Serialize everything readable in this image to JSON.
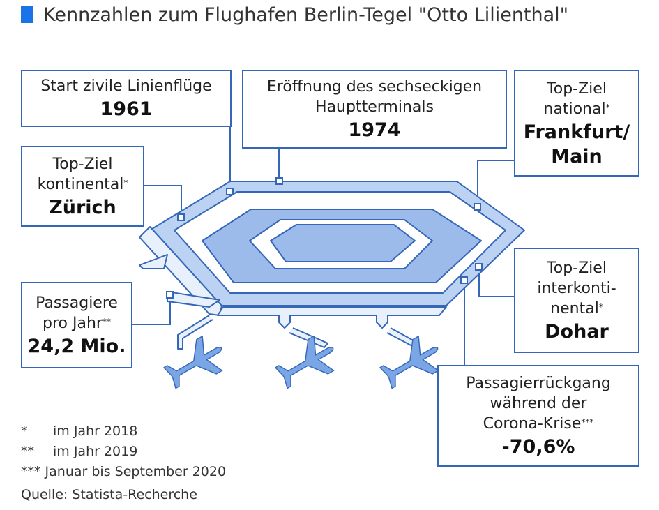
{
  "title": "Kennzahlen zum Flughafen Berlin-Tegel \"Otto Lilienthal\"",
  "boxes": [
    {
      "label": [
        "Start zivile Linienflüge"
      ],
      "value": [
        "1961"
      ]
    },
    {
      "label": [
        "Eröffnung des sechseckigen",
        "Hauptterminals"
      ],
      "value": [
        "1974"
      ]
    },
    {
      "label": [
        "Top-Ziel",
        "national"
      ],
      "note": "*",
      "value": [
        "Frankfurt/",
        "Main"
      ]
    },
    {
      "label": [
        "Top-Ziel",
        "kontinental"
      ],
      "note": "*",
      "value": [
        "Zürich"
      ]
    },
    {
      "label": [
        "Passagiere",
        "pro Jahr"
      ],
      "note": "**",
      "value": [
        "24,2 Mio."
      ]
    },
    {
      "label": [
        "Top-Ziel",
        "interkonti-",
        "nental"
      ],
      "note": "*",
      "value": [
        "Dohar"
      ]
    },
    {
      "label": [
        "Passagierrückgang",
        "während der",
        "Corona-Krise"
      ],
      "note": "***",
      "value": [
        "-70,6%"
      ]
    }
  ],
  "footnotes": [
    {
      "mark": "*",
      "text": "im Jahr 2018"
    },
    {
      "mark": "**",
      "text": "im Jahr 2019"
    },
    {
      "mark": "***",
      "text": "Januar bis September 2020"
    }
  ],
  "source": "Quelle: Statista-Recherche"
}
